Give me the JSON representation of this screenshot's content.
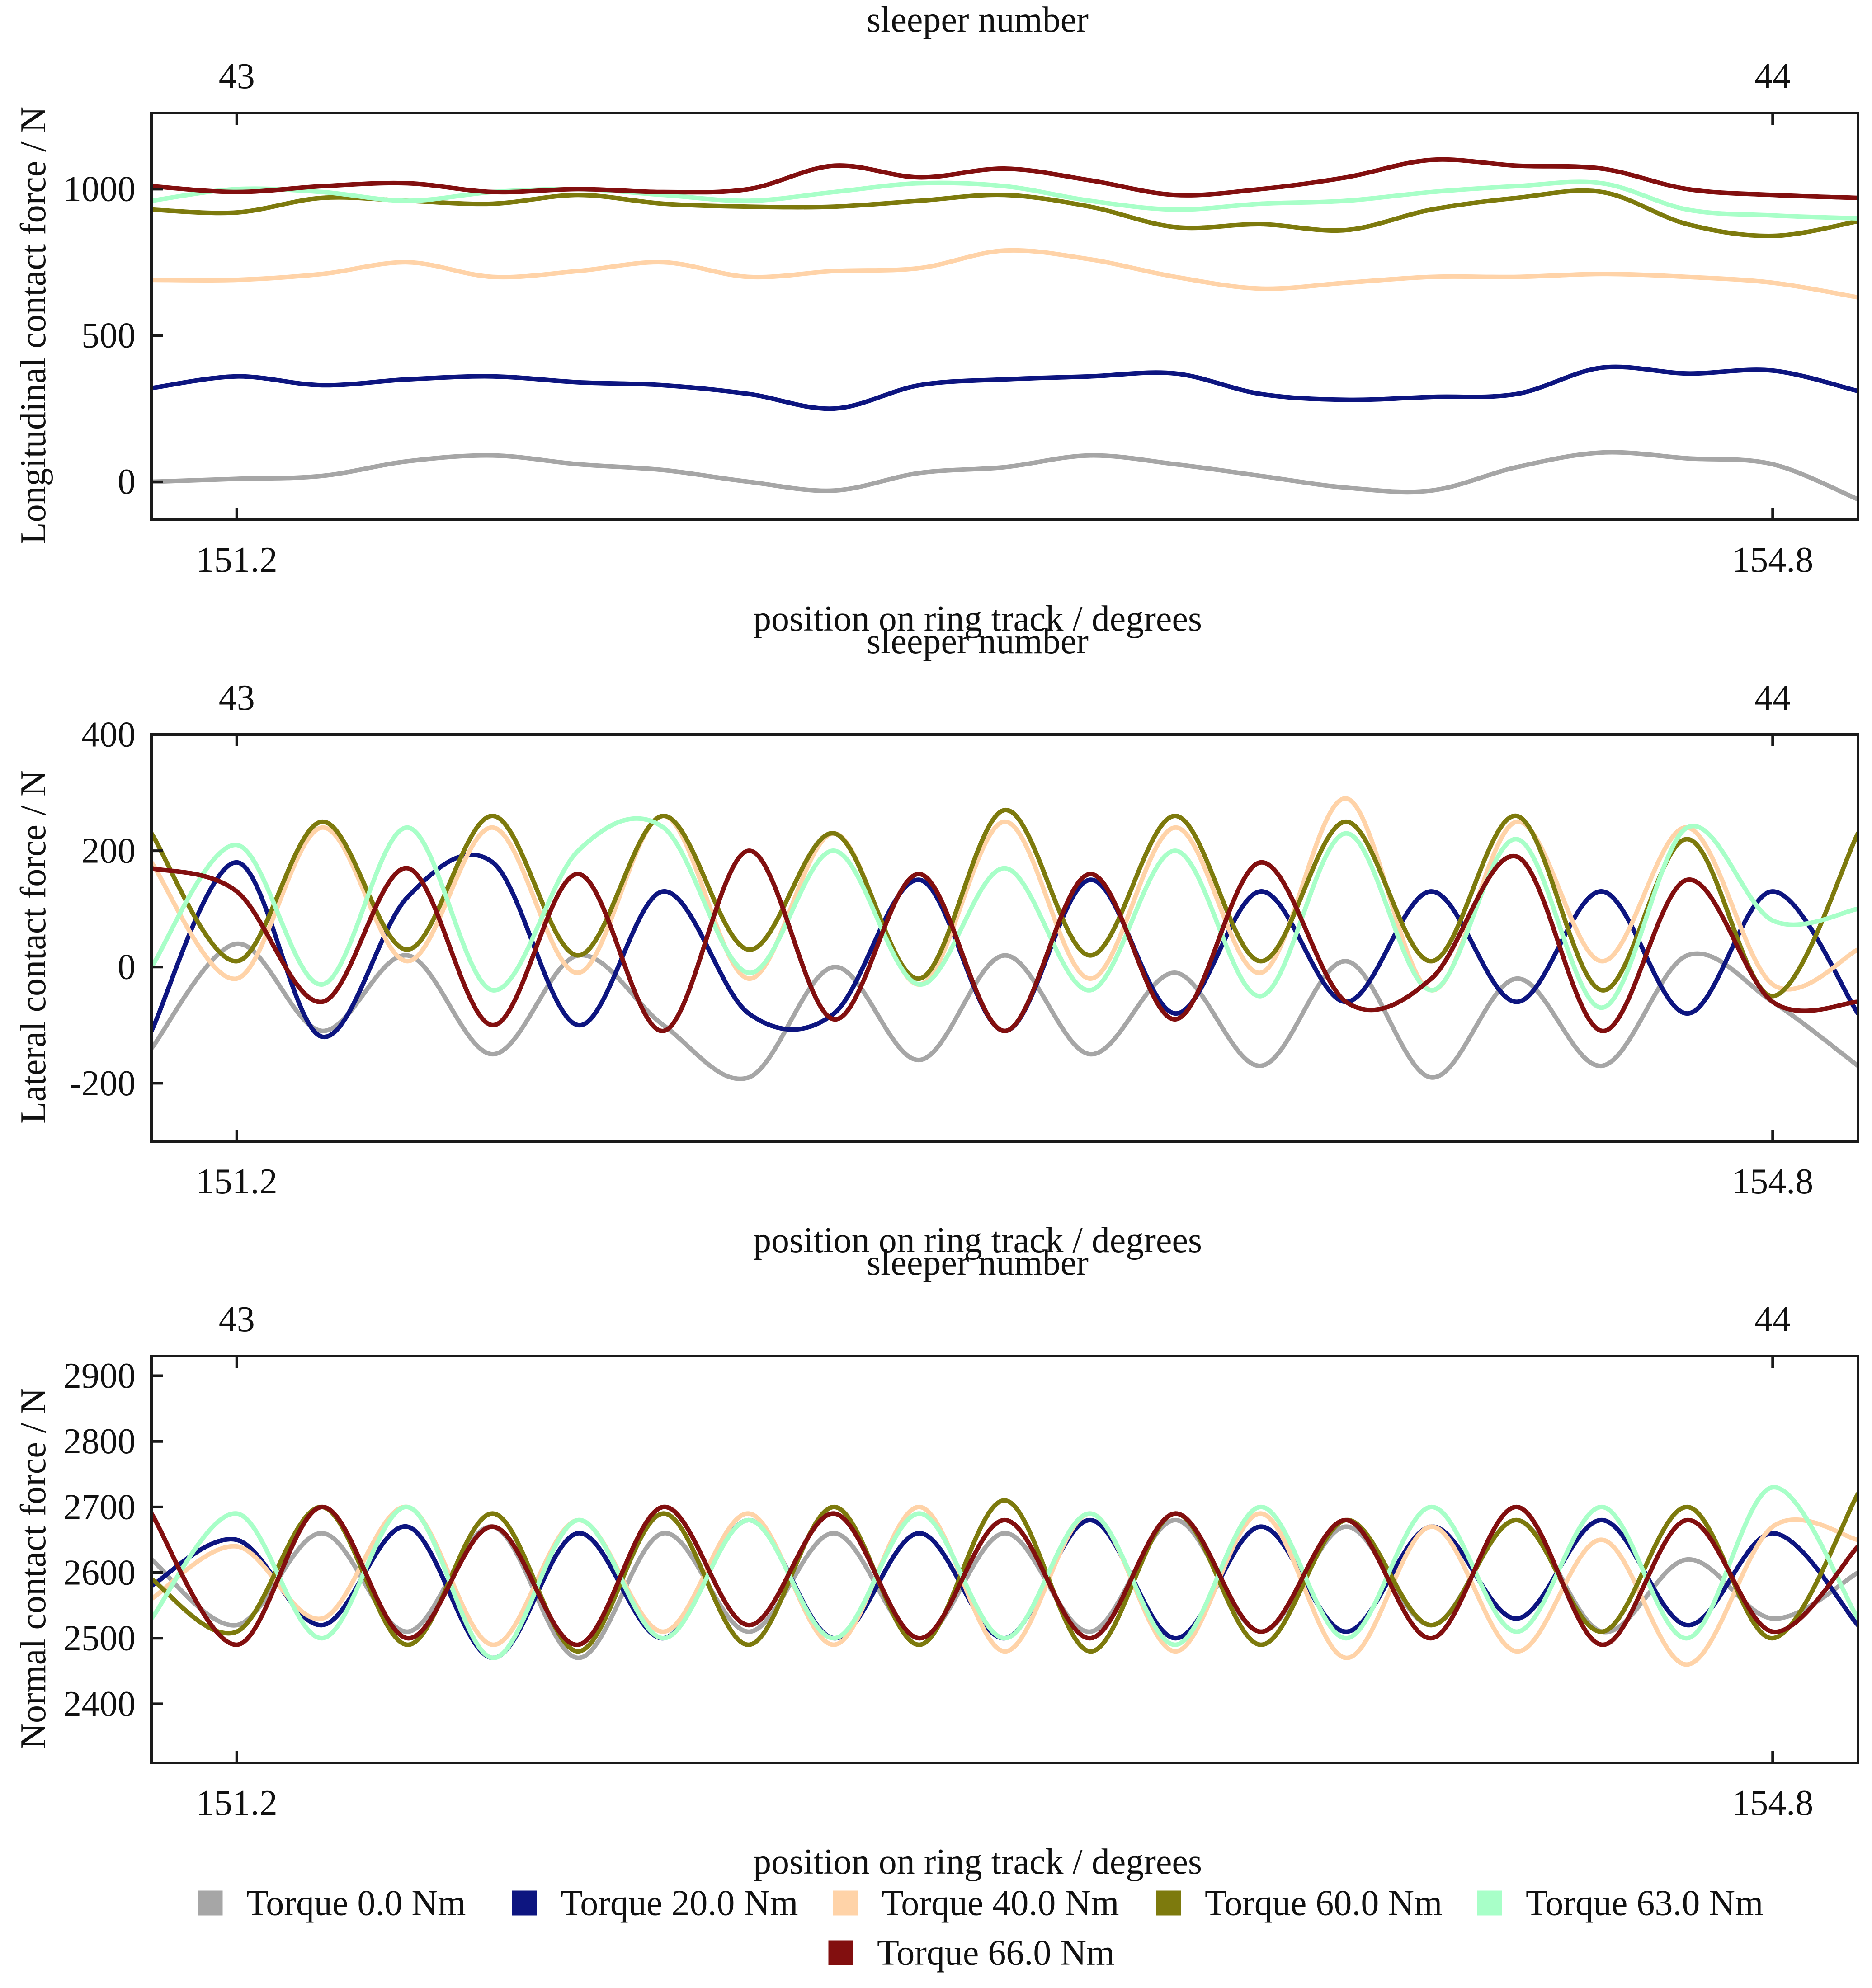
{
  "colors": {
    "torque_0": "#A6A6A6",
    "torque_20": "#0D1580",
    "torque_40": "#FFD3A8",
    "torque_60": "#7D7A0D",
    "torque_63": "#A8FFC8",
    "torque_66": "#820F0F",
    "axes": "#1a1a1a"
  },
  "legend": {
    "items": [
      {
        "label": "Torque 0.0 Nm",
        "color": "#A6A6A6"
      },
      {
        "label": "Torque 20.0 Nm",
        "color": "#0D1580"
      },
      {
        "label": "Torque 40.0 Nm",
        "color": "#FFD3A8"
      },
      {
        "label": "Torque 60.0 Nm",
        "color": "#7D7A0D"
      },
      {
        "label": "Torque 63.0 Nm",
        "color": "#A8FFC8"
      },
      {
        "label": "Torque 66.0 Nm",
        "color": "#820F0F"
      }
    ]
  },
  "chart_data": [
    {
      "type": "line",
      "title": "",
      "ylabel": "Longitudinal contact force / N",
      "xlabel": "position on ring track / degrees",
      "x2label": "sleeper number",
      "x_ticks": [
        "151.2",
        "154.8"
      ],
      "x2_ticks": [
        "43",
        "44"
      ],
      "y_ticks": [
        "0",
        "500",
        "1000"
      ],
      "xlim": [
        151.0,
        155.0
      ],
      "ylim": [
        -130,
        1260
      ],
      "grid": false,
      "series": [
        {
          "name": "Torque 0.0 Nm",
          "x": [
            151.0,
            151.2,
            151.4,
            151.6,
            151.8,
            152.0,
            152.2,
            152.4,
            152.6,
            152.8,
            153.0,
            153.2,
            153.4,
            153.6,
            153.8,
            154.0,
            154.2,
            154.4,
            154.6,
            154.8,
            155.0
          ],
          "values": [
            0,
            10,
            20,
            70,
            90,
            60,
            40,
            0,
            -30,
            30,
            50,
            90,
            60,
            20,
            -20,
            -30,
            50,
            100,
            80,
            60,
            -60
          ]
        },
        {
          "name": "Torque 20.0 Nm",
          "x": [
            151.0,
            151.2,
            151.4,
            151.6,
            151.8,
            152.0,
            152.2,
            152.4,
            152.6,
            152.8,
            153.0,
            153.2,
            153.4,
            153.6,
            153.8,
            154.0,
            154.2,
            154.4,
            154.6,
            154.8,
            155.0
          ],
          "values": [
            320,
            360,
            330,
            350,
            360,
            340,
            330,
            300,
            250,
            330,
            350,
            360,
            370,
            300,
            280,
            290,
            300,
            390,
            370,
            380,
            310
          ]
        },
        {
          "name": "Torque 40.0 Nm",
          "x": [
            151.0,
            151.2,
            151.4,
            151.6,
            151.8,
            152.0,
            152.2,
            152.4,
            152.6,
            152.8,
            153.0,
            153.2,
            153.4,
            153.6,
            153.8,
            154.0,
            154.2,
            154.4,
            154.6,
            154.8,
            155.0
          ],
          "values": [
            690,
            690,
            710,
            750,
            700,
            720,
            750,
            700,
            720,
            730,
            790,
            760,
            700,
            660,
            680,
            700,
            700,
            710,
            700,
            680,
            630
          ]
        },
        {
          "name": "Torque 60.0 Nm",
          "x": [
            151.0,
            151.2,
            151.4,
            151.6,
            151.8,
            152.0,
            152.2,
            152.4,
            152.6,
            152.8,
            153.0,
            153.2,
            153.4,
            153.6,
            153.8,
            154.0,
            154.2,
            154.4,
            154.6,
            154.8,
            155.0
          ],
          "values": [
            930,
            920,
            970,
            960,
            950,
            980,
            950,
            940,
            940,
            960,
            980,
            940,
            870,
            880,
            860,
            930,
            970,
            990,
            880,
            840,
            890
          ]
        },
        {
          "name": "Torque 63.0 Nm",
          "x": [
            151.0,
            151.2,
            151.4,
            151.6,
            151.8,
            152.0,
            152.2,
            152.4,
            152.6,
            152.8,
            153.0,
            153.2,
            153.4,
            153.6,
            153.8,
            154.0,
            154.2,
            154.4,
            154.6,
            154.8,
            155.0
          ],
          "values": [
            960,
            1000,
            990,
            960,
            990,
            1000,
            980,
            960,
            990,
            1020,
            1010,
            960,
            930,
            950,
            960,
            990,
            1010,
            1020,
            930,
            910,
            900
          ]
        },
        {
          "name": "Torque 66.0 Nm",
          "x": [
            151.0,
            151.2,
            151.4,
            151.6,
            151.8,
            152.0,
            152.2,
            152.4,
            152.6,
            152.8,
            153.0,
            153.2,
            153.4,
            153.6,
            153.8,
            154.0,
            154.2,
            154.4,
            154.6,
            154.8,
            155.0
          ],
          "values": [
            1010,
            990,
            1010,
            1020,
            990,
            1000,
            990,
            1000,
            1080,
            1040,
            1070,
            1030,
            980,
            1000,
            1040,
            1100,
            1080,
            1070,
            1000,
            980,
            970
          ]
        }
      ]
    },
    {
      "type": "line",
      "title": "",
      "ylabel": "Lateral contact force / N",
      "xlabel": "position on ring track / degrees",
      "x2label": "sleeper number",
      "x_ticks": [
        "151.2",
        "154.8"
      ],
      "x2_ticks": [
        "43",
        "44"
      ],
      "y_ticks": [
        "-200",
        "0",
        "200",
        "400"
      ],
      "xlim": [
        151.0,
        155.0
      ],
      "ylim": [
        -300,
        400
      ],
      "grid": false,
      "series": [
        {
          "name": "Torque 0.0 Nm",
          "x": [
            151.0,
            151.2,
            151.4,
            151.6,
            151.8,
            152.0,
            152.2,
            152.4,
            152.6,
            152.8,
            153.0,
            153.2,
            153.4,
            153.6,
            153.8,
            154.0,
            154.2,
            154.4,
            154.6,
            154.8,
            155.0
          ],
          "values": [
            -140,
            40,
            -110,
            20,
            -150,
            20,
            -100,
            -190,
            0,
            -160,
            20,
            -150,
            -10,
            -170,
            10,
            -190,
            -20,
            -170,
            20,
            -60,
            -170
          ]
        },
        {
          "name": "Torque 20.0 Nm",
          "x": [
            151.0,
            151.2,
            151.4,
            151.6,
            151.8,
            152.0,
            152.2,
            152.4,
            152.6,
            152.8,
            153.0,
            153.2,
            153.4,
            153.6,
            153.8,
            154.0,
            154.2,
            154.4,
            154.6,
            154.8,
            155.0
          ],
          "values": [
            -110,
            180,
            -120,
            120,
            180,
            -100,
            130,
            -80,
            -80,
            150,
            -110,
            150,
            -80,
            130,
            -60,
            130,
            -60,
            130,
            -80,
            130,
            -80
          ]
        },
        {
          "name": "Torque 40.0 Nm",
          "x": [
            151.0,
            151.2,
            151.4,
            151.6,
            151.8,
            152.0,
            152.2,
            152.4,
            152.6,
            152.8,
            153.0,
            153.2,
            153.4,
            153.6,
            153.8,
            154.0,
            154.2,
            154.4,
            154.6,
            154.8,
            155.0
          ],
          "values": [
            180,
            -20,
            240,
            10,
            240,
            -10,
            260,
            -20,
            230,
            -30,
            250,
            -20,
            240,
            -10,
            290,
            -40,
            250,
            10,
            240,
            -30,
            30
          ]
        },
        {
          "name": "Torque 60.0 Nm",
          "x": [
            151.0,
            151.2,
            151.4,
            151.6,
            151.8,
            152.0,
            152.2,
            152.4,
            152.6,
            152.8,
            153.0,
            153.2,
            153.4,
            153.6,
            153.8,
            154.0,
            154.2,
            154.4,
            154.6,
            154.8,
            155.0
          ],
          "values": [
            230,
            10,
            250,
            30,
            260,
            20,
            260,
            30,
            230,
            -20,
            270,
            20,
            260,
            10,
            250,
            10,
            260,
            -40,
            220,
            -50,
            230
          ]
        },
        {
          "name": "Torque 63.0 Nm",
          "x": [
            151.0,
            151.2,
            151.4,
            151.6,
            151.8,
            152.0,
            152.2,
            152.4,
            152.6,
            152.8,
            153.0,
            153.2,
            153.4,
            153.6,
            153.8,
            154.0,
            154.2,
            154.4,
            154.6,
            154.8,
            155.0
          ],
          "values": [
            0,
            210,
            -30,
            240,
            -40,
            200,
            240,
            -10,
            200,
            -30,
            170,
            -40,
            200,
            -50,
            230,
            -40,
            220,
            -70,
            240,
            80,
            100
          ]
        },
        {
          "name": "Torque 66.0 Nm",
          "x": [
            151.0,
            151.2,
            151.4,
            151.6,
            151.8,
            152.0,
            152.2,
            152.4,
            152.6,
            152.8,
            153.0,
            153.2,
            153.4,
            153.6,
            153.8,
            154.0,
            154.2,
            154.4,
            154.6,
            154.8,
            155.0
          ],
          "values": [
            170,
            130,
            -60,
            170,
            -100,
            160,
            -110,
            200,
            -90,
            160,
            -110,
            160,
            -90,
            180,
            -60,
            -20,
            190,
            -110,
            150,
            -60,
            -60
          ]
        }
      ]
    },
    {
      "type": "line",
      "title": "",
      "ylabel": "Normal contact force / N",
      "xlabel": "position on ring track / degrees",
      "x2label": "sleeper number",
      "x_ticks": [
        "151.2",
        "154.8"
      ],
      "x2_ticks": [
        "43",
        "44"
      ],
      "y_ticks": [
        "2400",
        "2500",
        "2600",
        "2700",
        "2800",
        "2900"
      ],
      "xlim": [
        151.0,
        155.0
      ],
      "ylim": [
        2310,
        2930
      ],
      "grid": false,
      "series": [
        {
          "name": "Torque 0.0 Nm",
          "x": [
            151.0,
            151.2,
            151.4,
            151.6,
            151.8,
            152.0,
            152.2,
            152.4,
            152.6,
            152.8,
            153.0,
            153.2,
            153.4,
            153.6,
            153.8,
            154.0,
            154.2,
            154.4,
            154.6,
            154.8,
            155.0
          ],
          "values": [
            2620,
            2520,
            2660,
            2510,
            2670,
            2470,
            2660,
            2510,
            2660,
            2500,
            2660,
            2510,
            2680,
            2510,
            2670,
            2520,
            2680,
            2510,
            2620,
            2530,
            2600
          ]
        },
        {
          "name": "Torque 20.0 Nm",
          "x": [
            151.0,
            151.2,
            151.4,
            151.6,
            151.8,
            152.0,
            152.2,
            152.4,
            152.6,
            152.8,
            153.0,
            153.2,
            153.4,
            153.6,
            153.8,
            154.0,
            154.2,
            154.4,
            154.6,
            154.8,
            155.0
          ],
          "values": [
            2580,
            2650,
            2520,
            2670,
            2470,
            2660,
            2500,
            2680,
            2500,
            2660,
            2500,
            2680,
            2500,
            2670,
            2510,
            2670,
            2530,
            2680,
            2520,
            2660,
            2520
          ]
        },
        {
          "name": "Torque 40.0 Nm",
          "x": [
            151.0,
            151.2,
            151.4,
            151.6,
            151.8,
            152.0,
            152.2,
            152.4,
            152.6,
            152.8,
            153.0,
            153.2,
            153.4,
            153.6,
            153.8,
            154.0,
            154.2,
            154.4,
            154.6,
            154.8,
            155.0
          ],
          "values": [
            2560,
            2640,
            2530,
            2700,
            2490,
            2680,
            2510,
            2690,
            2490,
            2700,
            2480,
            2690,
            2480,
            2690,
            2470,
            2670,
            2480,
            2650,
            2460,
            2670,
            2650
          ]
        },
        {
          "name": "Torque 60.0 Nm",
          "x": [
            151.0,
            151.2,
            151.4,
            151.6,
            151.8,
            152.0,
            152.2,
            152.4,
            152.6,
            152.8,
            153.0,
            153.2,
            153.4,
            153.6,
            153.8,
            154.0,
            154.2,
            154.4,
            154.6,
            154.8,
            155.0
          ],
          "values": [
            2590,
            2510,
            2700,
            2490,
            2690,
            2480,
            2690,
            2490,
            2700,
            2490,
            2710,
            2480,
            2690,
            2490,
            2680,
            2520,
            2680,
            2510,
            2700,
            2500,
            2720
          ]
        },
        {
          "name": "Torque 63.0 Nm",
          "x": [
            151.0,
            151.2,
            151.4,
            151.6,
            151.8,
            152.0,
            152.2,
            152.4,
            152.6,
            152.8,
            153.0,
            153.2,
            153.4,
            153.6,
            153.8,
            154.0,
            154.2,
            154.4,
            154.6,
            154.8,
            155.0
          ],
          "values": [
            2530,
            2690,
            2500,
            2700,
            2470,
            2680,
            2500,
            2680,
            2500,
            2690,
            2500,
            2690,
            2490,
            2700,
            2500,
            2700,
            2510,
            2700,
            2500,
            2730,
            2530
          ]
        },
        {
          "name": "Torque 66.0 Nm",
          "x": [
            151.0,
            151.2,
            151.4,
            151.6,
            151.8,
            152.0,
            152.2,
            152.4,
            152.6,
            152.8,
            153.0,
            153.2,
            153.4,
            153.6,
            153.8,
            154.0,
            154.2,
            154.4,
            154.6,
            154.8,
            155.0
          ],
          "values": [
            2690,
            2490,
            2700,
            2500,
            2670,
            2490,
            2700,
            2520,
            2690,
            2500,
            2680,
            2500,
            2690,
            2510,
            2680,
            2500,
            2700,
            2490,
            2680,
            2510,
            2640
          ]
        }
      ]
    }
  ]
}
